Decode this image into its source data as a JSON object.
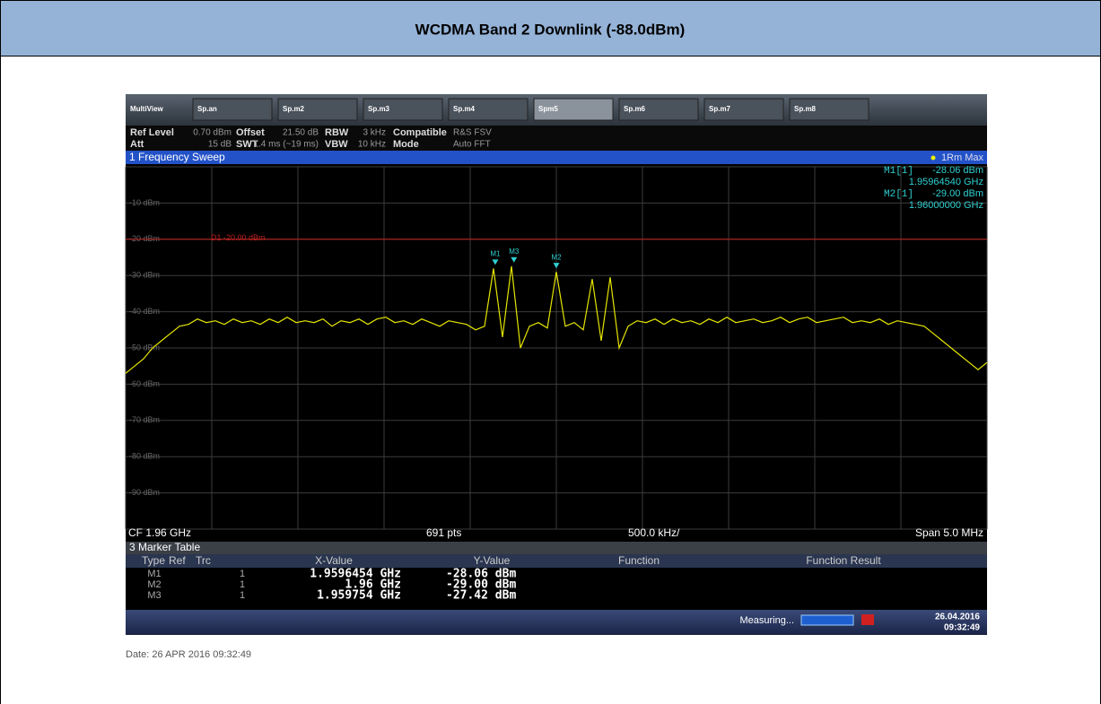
{
  "header": {
    "title": "WCDMA Band 2 Downlink (-88.0dBm)"
  },
  "screen": {
    "tabs": [
      "MultiView",
      "Sp.an",
      "Sp.m2",
      "Sp.m3",
      "Sp.m4",
      "Spm5",
      "Sp.m6",
      "Sp.m7",
      "Sp.m8"
    ],
    "settings": [
      {
        "label": "Ref Level",
        "value": "0.70 dBm"
      },
      {
        "label": "Att",
        "value": "15 dB"
      },
      {
        "label": "Offset",
        "value": "21.50 dB"
      },
      {
        "label": "SWT",
        "value": "1.4 ms (~19 ms)"
      },
      {
        "label": "RBW",
        "value": "3 kHz"
      },
      {
        "label": "VBW",
        "value": "10 kHz"
      },
      {
        "label": "Compatible",
        "value": "R&S FSV"
      },
      {
        "label": "Mode",
        "value": "Auto FFT"
      }
    ],
    "panel_title": "1 Frequency Sweep",
    "trace_label": "1Rm Max",
    "readout": [
      {
        "name": "M1[1]",
        "level": "-28.06 dBm",
        "freq": "1.95964540 GHz"
      },
      {
        "name": "M2[1]",
        "level": "-29.00 dBm",
        "freq": "1.96000000 GHz"
      }
    ],
    "ylim": [
      -100,
      0
    ],
    "yticks": [
      {
        "value": -10,
        "label": "-10 dBm"
      },
      {
        "value": -20,
        "label": "-20 dBm"
      },
      {
        "value": -30,
        "label": "-30 dBm"
      },
      {
        "value": -40,
        "label": "-40 dBm"
      },
      {
        "value": -50,
        "label": "-50 dBm"
      },
      {
        "value": -60,
        "label": "-60 dBm"
      },
      {
        "value": -70,
        "label": "-70 dBm"
      },
      {
        "value": -80,
        "label": "-80 dBm"
      },
      {
        "value": -90,
        "label": "-90 dBm"
      }
    ],
    "xlim": [
      1.9575,
      1.9625
    ],
    "display_line": {
      "label": "D1 -20.00 dBm",
      "value": -20
    },
    "trace": [
      -57,
      -55,
      -53,
      -50,
      -48,
      -46,
      -44,
      -43.5,
      -42,
      -43,
      -42.5,
      -43.5,
      -42,
      -43,
      -42.5,
      -43.5,
      -42,
      -43,
      -41.5,
      -43,
      -42.5,
      -43,
      -42,
      -44,
      -42.5,
      -43,
      -42,
      -43.5,
      -42,
      -41.5,
      -43,
      -42.5,
      -43.5,
      -42,
      -43,
      -44,
      -42.5,
      -43,
      -43.5,
      -45,
      -44,
      -28.06,
      -47,
      -27.42,
      -50,
      -44,
      -43,
      -44.5,
      -29,
      -44,
      -43,
      -45,
      -31,
      -48,
      -30.5,
      -50,
      -44,
      -42.5,
      -43,
      -42,
      -43.5,
      -42,
      -43,
      -42.5,
      -43.5,
      -42,
      -43,
      -41.5,
      -43,
      -42.5,
      -42,
      -43,
      -42.5,
      -41.5,
      -43,
      -42,
      -41.5,
      -43,
      -42.5,
      -42,
      -41.5,
      -43,
      -42.5,
      -43,
      -42,
      -43.5,
      -42.5,
      -43,
      -43.5,
      -44,
      -46,
      -48,
      -50,
      -52,
      -54,
      -56,
      -54
    ],
    "markers": [
      {
        "label": "M1",
        "freq": 1.9596454,
        "level": -28.06
      },
      {
        "label": "M3",
        "freq": 1.959754,
        "level": -27.42
      },
      {
        "label": "M2",
        "freq": 1.96,
        "level": -29
      }
    ],
    "footer": {
      "cf": "CF 1.96 GHz",
      "pts": "691 pts",
      "div": "500.0 kHz/",
      "span": "Span 5.0 MHz"
    },
    "marker_table": {
      "title": "3 Marker Table",
      "columns": [
        "Type",
        "Ref",
        "Trc",
        "X-Value",
        "Y-Value",
        "Function",
        "Function Result"
      ],
      "rows": [
        [
          "M1",
          "1",
          "1.9596454 GHz",
          "-28.06 dBm"
        ],
        [
          "M2",
          "1",
          "1.96 GHz",
          "-29.00 dBm"
        ],
        [
          "M3",
          "1",
          "1.959754 GHz",
          "-27.42 dBm"
        ]
      ]
    },
    "status": "Measuring...",
    "datetime": [
      "26.04.2016",
      "09:32:49"
    ]
  },
  "date": "Date: 26 APR 2016  09:32:49"
}
